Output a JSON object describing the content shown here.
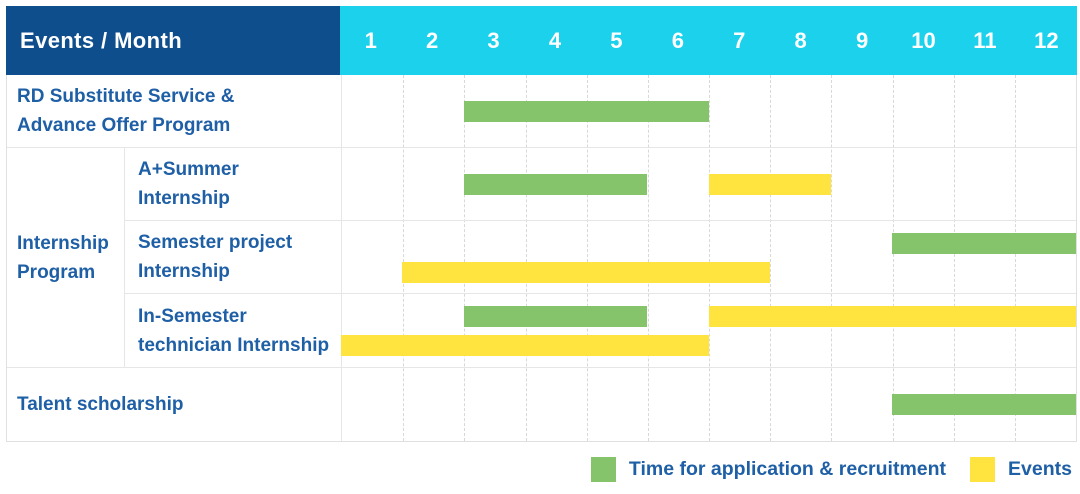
{
  "header": {
    "title": "Events / Month",
    "months": [
      "1",
      "2",
      "3",
      "4",
      "5",
      "6",
      "7",
      "8",
      "9",
      "10",
      "11",
      "12"
    ]
  },
  "group_label": "Internship Program",
  "row_labels": [
    "RD Substitute Service &\nAdvance Offer Program",
    "A+Summer\nInternship",
    "Semester project\nInternship",
    "In-Semester\ntechnician Internship",
    "Talent scholarship"
  ],
  "legend": [
    {
      "label": "Time for application & recruitment",
      "color": "#85c46b"
    },
    {
      "label": "Events",
      "color": "#ffe33e"
    }
  ],
  "colors": {
    "header_navy": "#0f4e8c",
    "header_cyan": "#1cd1ec",
    "green": "#85c46b",
    "yellow": "#ffe33e",
    "text_blue": "#1e5fa6",
    "grid_line": "#d8d8d8"
  },
  "chart_data": {
    "type": "bar",
    "subtype": "gantt",
    "title": "Events / Month",
    "x_axis": {
      "label": "Month",
      "ticks": [
        1,
        2,
        3,
        4,
        5,
        6,
        7,
        8,
        9,
        10,
        11,
        12
      ],
      "range": [
        1,
        12
      ]
    },
    "series_legend": [
      {
        "name": "Time for application & recruitment",
        "color": "#85c46b"
      },
      {
        "name": "Events",
        "color": "#ffe33e"
      }
    ],
    "tasks": [
      {
        "row": "RD Substitute Service & Advance Offer Program",
        "group": null,
        "bars": [
          {
            "type": "recruitment",
            "start": 3,
            "end": 6,
            "line": "single"
          }
        ]
      },
      {
        "row": "A+Summer Internship",
        "group": "Internship Program",
        "bars": [
          {
            "type": "recruitment",
            "start": 3,
            "end": 5,
            "line": "single"
          },
          {
            "type": "events",
            "start": 7,
            "end": 8,
            "line": "single"
          }
        ]
      },
      {
        "row": "Semester project Internship",
        "group": "Internship Program",
        "bars": [
          {
            "type": "recruitment",
            "start": 10,
            "end": 12,
            "line": "top"
          },
          {
            "type": "events",
            "start": 2,
            "end": 7,
            "line": "bottom"
          }
        ]
      },
      {
        "row": "In-Semester technician Internship",
        "group": "Internship Program",
        "bars": [
          {
            "type": "recruitment",
            "start": 3,
            "end": 5,
            "line": "top"
          },
          {
            "type": "events",
            "start": 7,
            "end": 12,
            "line": "top"
          },
          {
            "type": "events",
            "start": 1,
            "end": 6,
            "line": "bottom"
          }
        ]
      },
      {
        "row": "Talent scholarship",
        "group": null,
        "bars": [
          {
            "type": "recruitment",
            "start": 10,
            "end": 12,
            "line": "single"
          }
        ]
      }
    ]
  }
}
